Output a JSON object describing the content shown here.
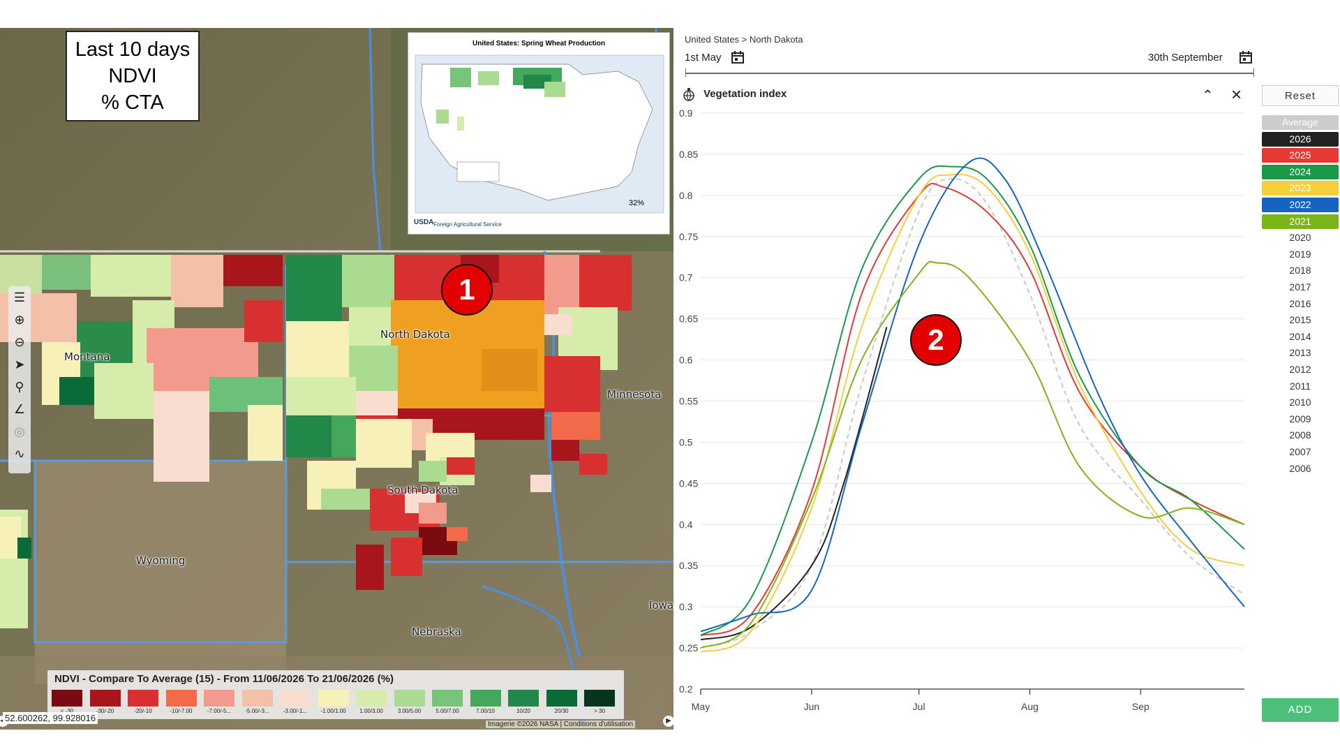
{
  "info_box": {
    "lines": [
      "Last 10 days",
      "NDVI",
      "% CTA"
    ]
  },
  "usda_inset": {
    "title": "United States: Spring Wheat Production",
    "agency": "Foreign Agricultural Service",
    "logo": "USDA",
    "share": "32%"
  },
  "map": {
    "labels": {
      "north_dakota": "North Dakota",
      "montana": "Montana",
      "minnesota": "Minnesota",
      "south_dakota": "South Dakota",
      "wyoming": "Wyoming",
      "nebraska": "Nebraska",
      "iowa": "Iowa"
    },
    "tools": [
      "layers-icon",
      "zoom-in-icon",
      "zoom-out-icon",
      "navigate-icon",
      "search-icon",
      "measure-icon",
      "target-icon",
      "draw-icon"
    ],
    "coords": "52.600262, 99.928016",
    "credits": "Imagerie ©2026 NASA | Conditions d'utilisation",
    "legend": {
      "title": "NDVI - Compare To Average (15) - From 11/06/2026 To 21/06/2026 (%)",
      "items": [
        {
          "label": "< -30",
          "color": "#7a0b12"
        },
        {
          "label": "-30/-20",
          "color": "#a8151b"
        },
        {
          "label": "-20/-10",
          "color": "#d83030"
        },
        {
          "label": "-10/-7.00",
          "color": "#f26a4a"
        },
        {
          "label": "-7.00/-5...",
          "color": "#f29a8c"
        },
        {
          "label": "-5.00/-3...",
          "color": "#f5c0a8"
        },
        {
          "label": "-3.00/-1...",
          "color": "#f8ddd0"
        },
        {
          "label": "-1.00/1.00",
          "color": "#f7f0b8"
        },
        {
          "label": "1.00/3.00",
          "color": "#d6ecaa"
        },
        {
          "label": "3.00/5.00",
          "color": "#aadb90"
        },
        {
          "label": "5.00/7.00",
          "color": "#78c478"
        },
        {
          "label": "7.00/10",
          "color": "#45a75a"
        },
        {
          "label": "10/20",
          "color": "#22884a"
        },
        {
          "label": "20/30",
          "color": "#0a6b38"
        },
        {
          "label": "> 30",
          "color": "#06341d"
        }
      ]
    }
  },
  "badges": [
    "1",
    "2"
  ],
  "chart_panel": {
    "breadcrumb": "United States > North Dakota",
    "date_start": "1st May",
    "date_end": "30th September",
    "title": "Vegetation index",
    "reset_label": "Reset",
    "add_label": "ADD",
    "years": [
      {
        "label": "Average",
        "bg": "#cccccc",
        "fg": "#ffffff"
      },
      {
        "label": "2026",
        "bg": "#222222",
        "fg": "#ffffff"
      },
      {
        "label": "2025",
        "bg": "#e53935",
        "fg": "#ffffff"
      },
      {
        "label": "2024",
        "bg": "#1a9a49",
        "fg": "#ffffff"
      },
      {
        "label": "2023",
        "bg": "#f4cf3a",
        "fg": "#ffffff"
      },
      {
        "label": "2022",
        "bg": "#1565c0",
        "fg": "#ffffff"
      },
      {
        "label": "2021",
        "bg": "#7cb518",
        "fg": "#ffffff"
      },
      {
        "label": "2020",
        "bg": "",
        "fg": "#333333"
      },
      {
        "label": "2019",
        "bg": "",
        "fg": "#333333"
      },
      {
        "label": "2018",
        "bg": "",
        "fg": "#333333"
      },
      {
        "label": "2017",
        "bg": "",
        "fg": "#333333"
      },
      {
        "label": "2016",
        "bg": "",
        "fg": "#333333"
      },
      {
        "label": "2015",
        "bg": "",
        "fg": "#333333"
      },
      {
        "label": "2014",
        "bg": "",
        "fg": "#333333"
      },
      {
        "label": "2013",
        "bg": "",
        "fg": "#333333"
      },
      {
        "label": "2012",
        "bg": "",
        "fg": "#333333"
      },
      {
        "label": "2011",
        "bg": "",
        "fg": "#333333"
      },
      {
        "label": "2010",
        "bg": "",
        "fg": "#333333"
      },
      {
        "label": "2009",
        "bg": "",
        "fg": "#333333"
      },
      {
        "label": "2008",
        "bg": "",
        "fg": "#333333"
      },
      {
        "label": "2007",
        "bg": "",
        "fg": "#333333"
      },
      {
        "label": "2006",
        "bg": "",
        "fg": "#333333"
      }
    ]
  },
  "chart_data": {
    "type": "line",
    "title": "Vegetation index",
    "x_type": "date",
    "xlim": [
      "05-01",
      "09-30"
    ],
    "ylim": [
      0.2,
      0.9
    ],
    "yticks": [
      "0.2",
      "0.25",
      "0.3",
      "0.35",
      "0.4",
      "0.45",
      "0.5",
      "0.55",
      "0.6",
      "0.65",
      "0.7",
      "0.75",
      "0.8",
      "0.85",
      "0.9"
    ],
    "xtick_labels": [
      {
        "label": "May",
        "date": "05-01"
      },
      {
        "label": "Jun",
        "date": "06-01"
      },
      {
        "label": "Jul",
        "date": "07-01"
      },
      {
        "label": "Aug",
        "date": "08-01"
      },
      {
        "label": "Sep",
        "date": "09-01"
      }
    ],
    "grid": "horizontal",
    "series": [
      {
        "name": "Average",
        "color": "#c8c8c8",
        "dashed": true,
        "points": [
          [
            "05-01",
            0.25
          ],
          [
            "05-15",
            0.27
          ],
          [
            "06-01",
            0.35
          ],
          [
            "06-15",
            0.57
          ],
          [
            "07-01",
            0.78
          ],
          [
            "07-10",
            0.82
          ],
          [
            "07-20",
            0.79
          ],
          [
            "08-01",
            0.68
          ],
          [
            "08-15",
            0.52
          ],
          [
            "09-01",
            0.43
          ],
          [
            "09-15",
            0.36
          ],
          [
            "09-30",
            0.315
          ]
        ]
      },
      {
        "name": "2026",
        "color": "#222222",
        "dashed": false,
        "points": [
          [
            "05-01",
            0.26
          ],
          [
            "05-15",
            0.275
          ],
          [
            "06-01",
            0.35
          ],
          [
            "06-10",
            0.45
          ],
          [
            "06-22",
            0.64
          ]
        ]
      },
      {
        "name": "2025",
        "color": "#e53935",
        "dashed": false,
        "points": [
          [
            "05-01",
            0.265
          ],
          [
            "05-15",
            0.29
          ],
          [
            "06-01",
            0.44
          ],
          [
            "06-15",
            0.68
          ],
          [
            "07-01",
            0.8
          ],
          [
            "07-08",
            0.81
          ],
          [
            "07-20",
            0.78
          ],
          [
            "08-01",
            0.71
          ],
          [
            "08-15",
            0.56
          ],
          [
            "09-01",
            0.47
          ],
          [
            "09-15",
            0.43
          ],
          [
            "09-30",
            0.4
          ]
        ]
      },
      {
        "name": "2024",
        "color": "#1a9a49",
        "dashed": false,
        "points": [
          [
            "05-01",
            0.265
          ],
          [
            "05-15",
            0.31
          ],
          [
            "06-01",
            0.5
          ],
          [
            "06-15",
            0.71
          ],
          [
            "07-01",
            0.82
          ],
          [
            "07-10",
            0.835
          ],
          [
            "07-20",
            0.82
          ],
          [
            "08-01",
            0.74
          ],
          [
            "08-15",
            0.58
          ],
          [
            "09-01",
            0.47
          ],
          [
            "09-15",
            0.43
          ],
          [
            "09-30",
            0.37
          ]
        ]
      },
      {
        "name": "2023",
        "color": "#f4cf3a",
        "dashed": false,
        "points": [
          [
            "05-01",
            0.245
          ],
          [
            "05-15",
            0.27
          ],
          [
            "06-01",
            0.42
          ],
          [
            "06-15",
            0.64
          ],
          [
            "07-01",
            0.8
          ],
          [
            "07-10",
            0.825
          ],
          [
            "07-20",
            0.81
          ],
          [
            "08-01",
            0.73
          ],
          [
            "08-15",
            0.57
          ],
          [
            "09-01",
            0.44
          ],
          [
            "09-15",
            0.37
          ],
          [
            "09-30",
            0.35
          ]
        ]
      },
      {
        "name": "2022",
        "color": "#1565c0",
        "dashed": false,
        "points": [
          [
            "05-01",
            0.27
          ],
          [
            "05-15",
            0.29
          ],
          [
            "06-01",
            0.32
          ],
          [
            "06-15",
            0.52
          ],
          [
            "07-01",
            0.74
          ],
          [
            "07-15",
            0.84
          ],
          [
            "07-25",
            0.82
          ],
          [
            "08-05",
            0.72
          ],
          [
            "08-20",
            0.56
          ],
          [
            "09-01",
            0.46
          ],
          [
            "09-15",
            0.38
          ],
          [
            "09-30",
            0.3
          ]
        ]
      },
      {
        "name": "2021",
        "color": "#7cb518",
        "dashed": false,
        "points": [
          [
            "05-01",
            0.25
          ],
          [
            "05-15",
            0.28
          ],
          [
            "06-01",
            0.43
          ],
          [
            "06-15",
            0.6
          ],
          [
            "07-01",
            0.705
          ],
          [
            "07-06",
            0.718
          ],
          [
            "07-15",
            0.7
          ],
          [
            "08-01",
            0.6
          ],
          [
            "08-15",
            0.47
          ],
          [
            "09-01",
            0.41
          ],
          [
            "09-15",
            0.42
          ],
          [
            "09-30",
            0.4
          ]
        ]
      }
    ]
  }
}
